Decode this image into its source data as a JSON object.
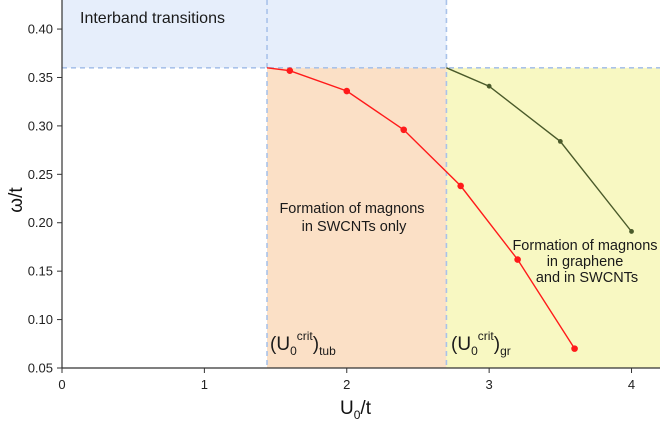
{
  "chart_data": {
    "type": "line",
    "xlabel": {
      "main": "U",
      "sub": "0",
      "tail": "/t"
    },
    "ylabel": "ω/t",
    "xlim": [
      0,
      4.2
    ],
    "ylim": [
      0.05,
      0.43
    ],
    "x_ticks": [
      0,
      1,
      2,
      3,
      4
    ],
    "y_ticks": [
      0.05,
      0.1,
      0.15,
      0.2,
      0.25,
      0.3,
      0.35,
      0.4
    ],
    "grid": false,
    "regions": [
      {
        "name": "interband",
        "x": [
          0,
          2.7
        ],
        "y": [
          0.36,
          0.43
        ],
        "color": "#e6eefb"
      },
      {
        "name": "swcnt-only",
        "x": [
          1.44,
          2.7
        ],
        "y": [
          0.05,
          0.36
        ],
        "color": "#fbe0c6"
      },
      {
        "name": "graphene-and-swcnt",
        "x": [
          2.7,
          4.2
        ],
        "y": [
          0.05,
          0.36
        ],
        "color": "#f8f8c2"
      }
    ],
    "reference_lines": [
      {
        "orientation": "horizontal",
        "value": 0.36,
        "color": "#a9c2ea"
      },
      {
        "orientation": "vertical",
        "value": 2.7,
        "color": "#a9c2ea"
      },
      {
        "orientation": "vertical",
        "value": 1.44,
        "color": "#a9c2ea"
      }
    ],
    "series": [
      {
        "color": "#ff1a1a",
        "points": [
          [
            1.44,
            0.36
          ],
          [
            1.6,
            0.357
          ],
          [
            2.0,
            0.336
          ],
          [
            2.4,
            0.296
          ],
          [
            2.8,
            0.238
          ],
          [
            3.2,
            0.162
          ],
          [
            3.6,
            0.07
          ]
        ],
        "marked_from": 1
      },
      {
        "color": "#4a5a2a",
        "points": [
          [
            2.7,
            0.36
          ],
          [
            3.0,
            0.341
          ],
          [
            3.5,
            0.284
          ],
          [
            4.0,
            0.191
          ]
        ],
        "marked_from": 1
      }
    ],
    "annotations": {
      "interband": "Interband transitions",
      "swcnt_only": [
        "Formation of magnons",
        "in SWCNTs only"
      ],
      "graphene": [
        "Formation of magnons",
        "in graphene",
        "and in SWCNTs"
      ],
      "ucrit_tub": {
        "open": "(U",
        "sub0": "0",
        "sup": "crit",
        "close": ")",
        "subtail": "tub"
      },
      "ucrit_gr": {
        "open": "(U",
        "sub0": "0",
        "sup": "crit",
        "close": ")",
        "subtail": "gr"
      }
    }
  }
}
